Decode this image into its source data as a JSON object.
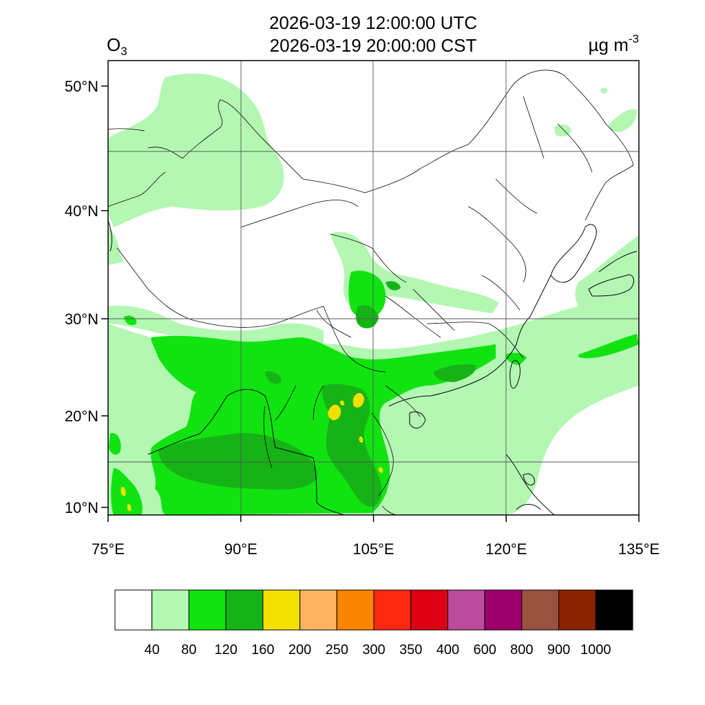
{
  "header": {
    "variable": "O",
    "variable_sub": "3",
    "utc_time": "2026-03-19 12:00:00 UTC",
    "cst_time": "2026-03-19 20:00:00 CST",
    "unit_base": "µg m",
    "unit_exp": "-3"
  },
  "map": {
    "lon_range": [
      75,
      135
    ],
    "lat_range": [
      9,
      52
    ],
    "lon_ticks": [
      {
        "value": 75,
        "label": "75°E"
      },
      {
        "value": 90,
        "label": "90°E"
      },
      {
        "value": 105,
        "label": "105°E"
      },
      {
        "value": 120,
        "label": "120°E"
      },
      {
        "value": 135,
        "label": "135°E"
      }
    ],
    "lat_ticks": [
      {
        "value": 10,
        "label": "10°N"
      },
      {
        "value": 20,
        "label": "20°N"
      },
      {
        "value": 30,
        "label": "30°N"
      },
      {
        "value": 40,
        "label": "40°N"
      },
      {
        "value": 50,
        "label": "50°N"
      }
    ],
    "colors": {
      "ocean_land": "#ffffff",
      "border": "#000000",
      "grid": "#555555"
    }
  },
  "legend": {
    "colors": [
      "#ffffff",
      "#b3f7b3",
      "#11e311",
      "#16b316",
      "#f3e000",
      "#fcb25e",
      "#f88400",
      "#fe2811",
      "#dc0012",
      "#bb4c9b",
      "#9e006b",
      "#9a5240",
      "#8b2200",
      "#000000"
    ],
    "labels": [
      "40",
      "80",
      "120",
      "160",
      "200",
      "250",
      "300",
      "350",
      "400",
      "600",
      "800",
      "900",
      "1000"
    ]
  }
}
